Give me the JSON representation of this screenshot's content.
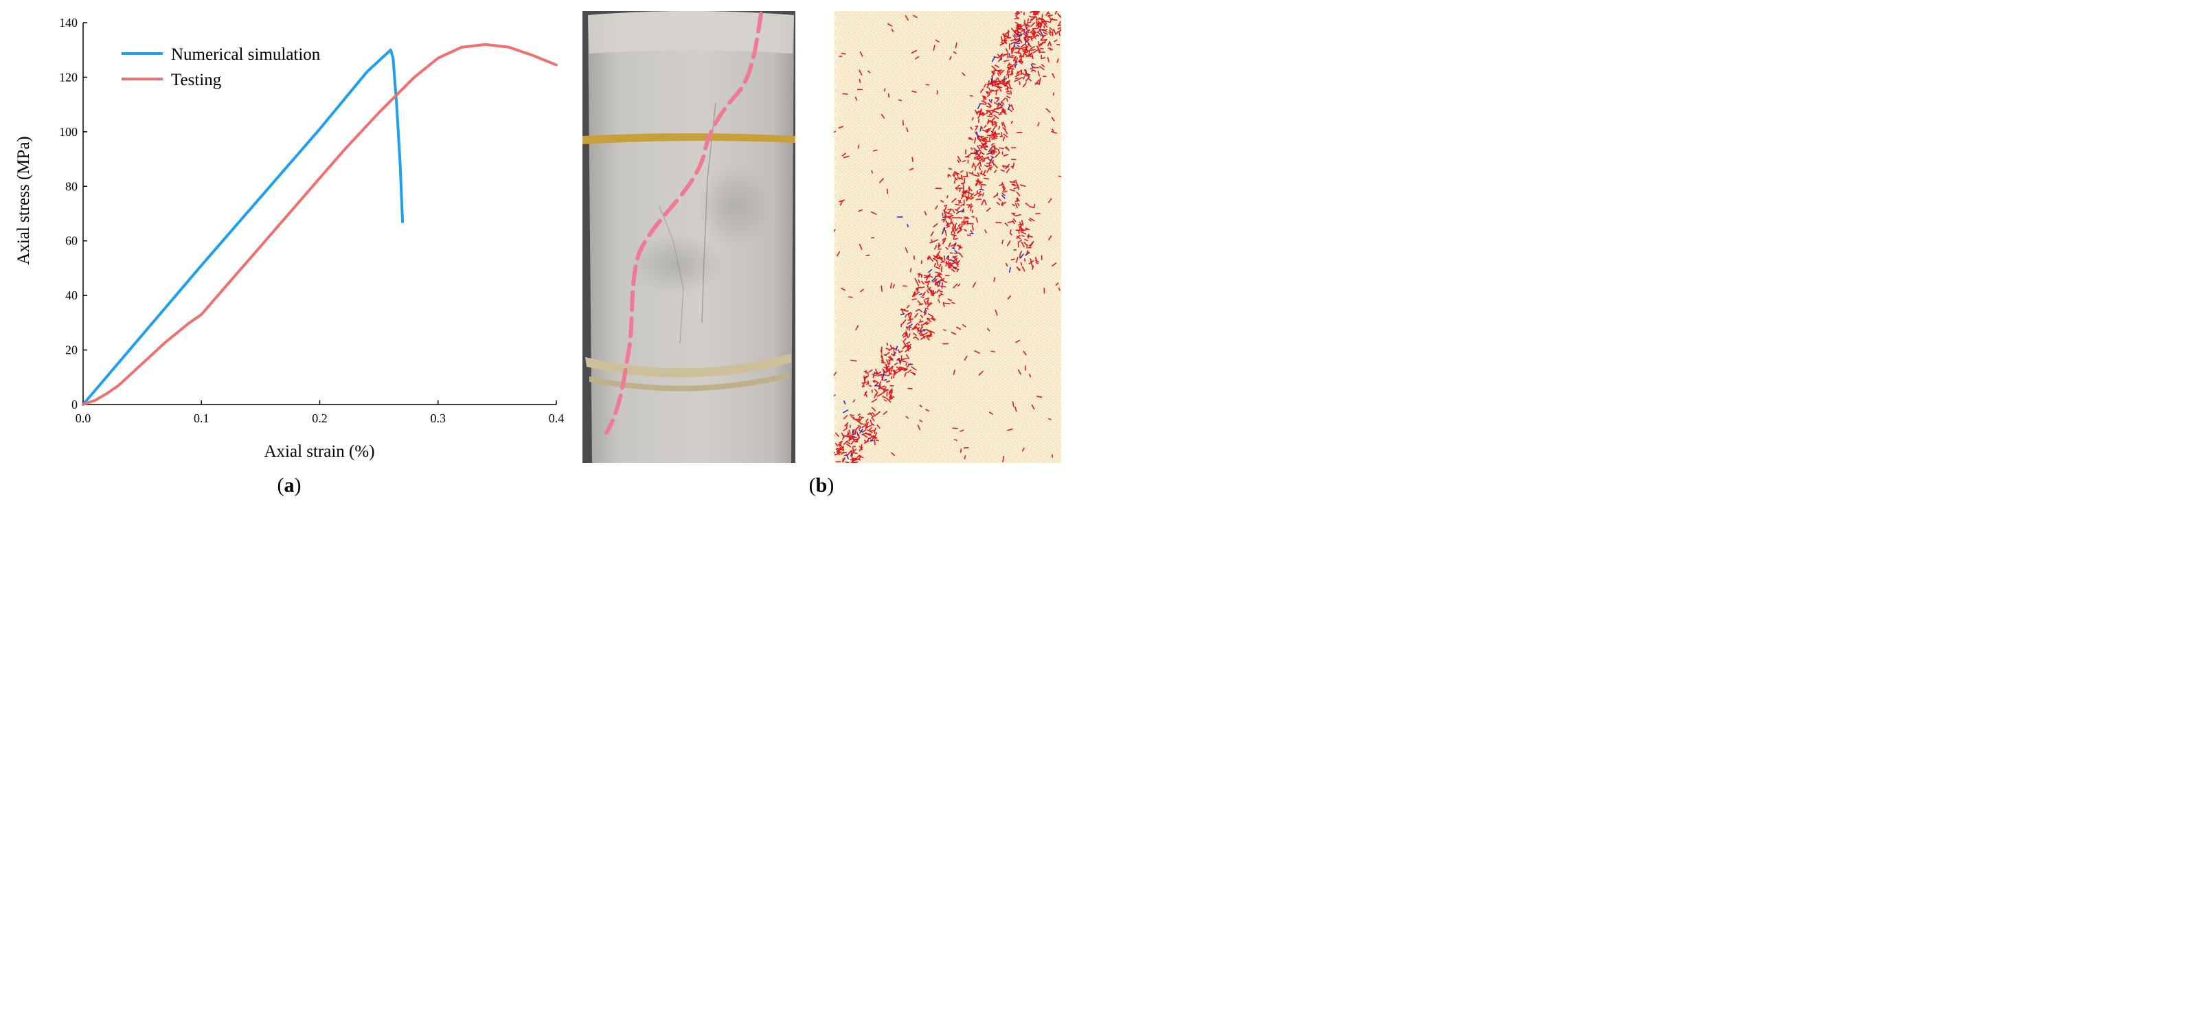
{
  "chart_data": {
    "type": "line",
    "xlabel": "Axial strain (%)",
    "ylabel": "Axial stress (MPa)",
    "xlim": [
      0,
      0.4
    ],
    "ylim": [
      0,
      140
    ],
    "xticks": [
      0.0,
      0.1,
      0.2,
      0.3,
      0.4
    ],
    "xtick_labels": [
      "0.0",
      "0.1",
      "0.2",
      "0.3",
      "0.4"
    ],
    "yticks": [
      0,
      20,
      40,
      60,
      80,
      100,
      120,
      140
    ],
    "ytick_labels": [
      "0",
      "20",
      "40",
      "60",
      "80",
      "100",
      "120",
      "140"
    ],
    "grid": false,
    "legend_position": "top-left",
    "series": [
      {
        "name": "Numerical simulation",
        "color": "#1fa0ef",
        "x": [
          0.0,
          0.05,
          0.1,
          0.15,
          0.2,
          0.24,
          0.255,
          0.26,
          0.262,
          0.265,
          0.268,
          0.27
        ],
        "y": [
          0,
          25.5,
          51,
          76,
          101,
          122,
          128,
          130,
          127,
          110,
          88,
          67
        ]
      },
      {
        "name": "Testing",
        "color": "#f07070",
        "x": [
          0.0,
          0.01,
          0.02,
          0.03,
          0.05,
          0.07,
          0.09,
          0.1,
          0.12,
          0.15,
          0.18,
          0.2,
          0.22,
          0.25,
          0.28,
          0.3,
          0.32,
          0.34,
          0.36,
          0.38,
          0.4
        ],
        "y": [
          0,
          1.5,
          4,
          7,
          15,
          23,
          30,
          33,
          43,
          58,
          73,
          83,
          93,
          107,
          120,
          127,
          131,
          132,
          131,
          128,
          124.5
        ]
      }
    ]
  },
  "panel_labels": {
    "a_open": "(",
    "a_letter": "a",
    "a_close": ")",
    "b_open": "(",
    "b_letter": "b",
    "b_close": ")"
  },
  "colors": {
    "photo_background": "#4a4b4d",
    "specimen": "#c9c6c2",
    "rubber_band": "#c8a03a",
    "string_band": "#cdbf9a",
    "crack_trace": "#ee7a98",
    "sim_background": "#fbf1da",
    "sim_cracks_tensile": "#e0161a",
    "sim_cracks_shear": "#1a33d6"
  }
}
